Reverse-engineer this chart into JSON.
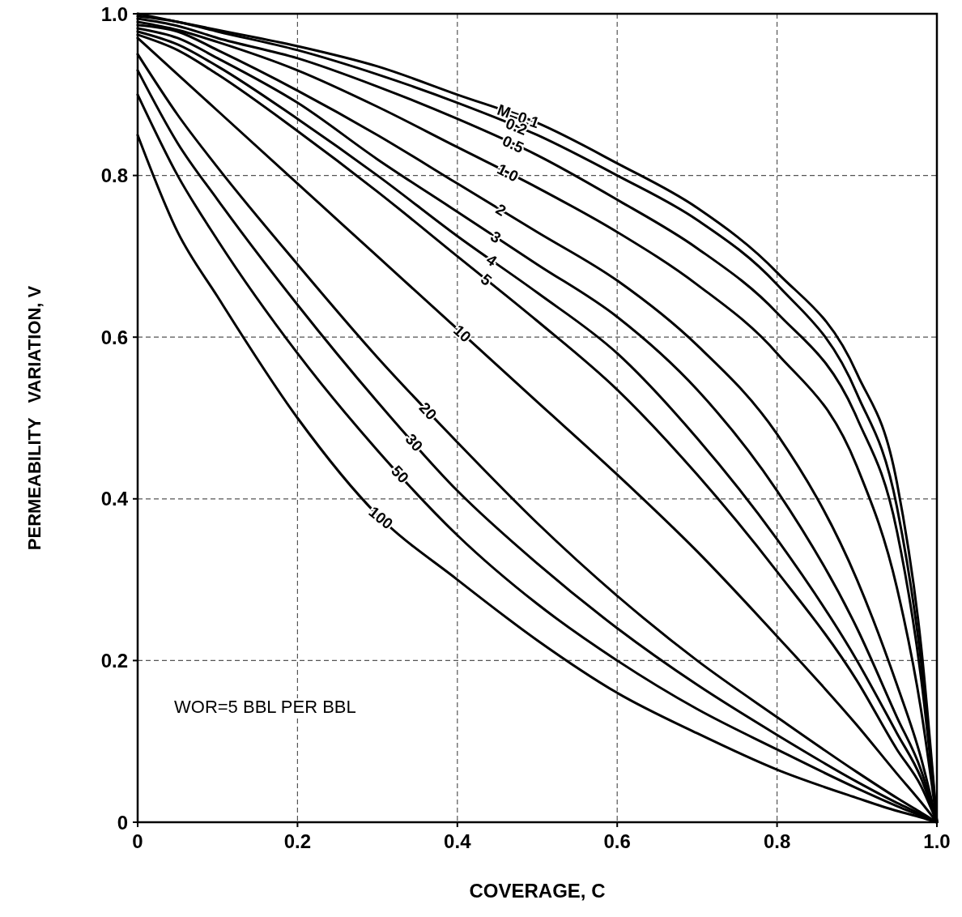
{
  "chart_data": {
    "type": "line",
    "xlabel": "COVERAGE, C",
    "ylabel": "PERMEABILITY   VARIATION, V",
    "x": [
      0,
      0.05,
      0.1,
      0.2,
      0.3,
      0.4,
      0.5,
      0.6,
      0.7,
      0.8,
      0.9,
      0.95,
      0.98,
      1
    ],
    "series": [
      {
        "name": "M=0.1",
        "color": "#000000",
        "values": [
          1,
          0.99,
          0.98,
          0.96,
          0.935,
          0.9,
          0.865,
          0.815,
          0.76,
          0.68,
          0.555,
          0.42,
          0.22,
          0
        ]
      },
      {
        "name": "0.2",
        "color": "#000000",
        "values": [
          0.997,
          0.99,
          0.978,
          0.955,
          0.925,
          0.89,
          0.85,
          0.8,
          0.745,
          0.665,
          0.53,
          0.39,
          0.2,
          0
        ]
      },
      {
        "name": "0.5",
        "color": "#000000",
        "values": [
          0.994,
          0.985,
          0.97,
          0.945,
          0.91,
          0.87,
          0.825,
          0.77,
          0.71,
          0.63,
          0.5,
          0.36,
          0.18,
          0
        ]
      },
      {
        "name": "1.0",
        "color": "#000000",
        "values": [
          0.99,
          0.98,
          0.965,
          0.93,
          0.885,
          0.835,
          0.785,
          0.73,
          0.665,
          0.58,
          0.44,
          0.29,
          0.14,
          0
        ]
      },
      {
        "name": "2",
        "color": "#000000",
        "values": [
          0.986,
          0.978,
          0.955,
          0.905,
          0.85,
          0.79,
          0.73,
          0.67,
          0.59,
          0.48,
          0.3,
          0.17,
          0.08,
          0
        ]
      },
      {
        "name": "3",
        "color": "#000000",
        "values": [
          0.982,
          0.97,
          0.945,
          0.89,
          0.82,
          0.755,
          0.69,
          0.625,
          0.535,
          0.41,
          0.24,
          0.13,
          0.065,
          0
        ]
      },
      {
        "name": "4",
        "color": "#000000",
        "values": [
          0.978,
          0.962,
          0.935,
          0.87,
          0.8,
          0.725,
          0.655,
          0.58,
          0.475,
          0.35,
          0.2,
          0.11,
          0.055,
          0
        ]
      },
      {
        "name": "5",
        "color": "#000000",
        "values": [
          0.974,
          0.955,
          0.925,
          0.855,
          0.78,
          0.7,
          0.62,
          0.535,
          0.43,
          0.31,
          0.175,
          0.09,
          0.045,
          0
        ]
      },
      {
        "name": "10",
        "color": "#000000",
        "values": [
          0.97,
          0.925,
          0.88,
          0.79,
          0.7,
          0.61,
          0.52,
          0.43,
          0.335,
          0.23,
          0.12,
          0.06,
          0.025,
          0
        ]
      },
      {
        "name": "20",
        "color": "#000000",
        "values": [
          0.95,
          0.875,
          0.81,
          0.69,
          0.575,
          0.47,
          0.37,
          0.28,
          0.2,
          0.13,
          0.062,
          0.03,
          0.012,
          0
        ]
      },
      {
        "name": "30",
        "color": "#000000",
        "values": [
          0.93,
          0.84,
          0.77,
          0.64,
          0.52,
          0.41,
          0.32,
          0.24,
          0.17,
          0.108,
          0.05,
          0.024,
          0.01,
          0
        ]
      },
      {
        "name": "50",
        "color": "#000000",
        "values": [
          0.9,
          0.8,
          0.72,
          0.58,
          0.46,
          0.355,
          0.27,
          0.2,
          0.14,
          0.09,
          0.042,
          0.02,
          0.008,
          0
        ]
      },
      {
        "name": "100",
        "color": "#000000",
        "values": [
          0.85,
          0.73,
          0.65,
          0.5,
          0.38,
          0.3,
          0.225,
          0.16,
          0.11,
          0.065,
          0.03,
          0.014,
          0.006,
          0
        ]
      }
    ],
    "xlim": [
      0,
      1
    ],
    "ylim": [
      0,
      1
    ],
    "xticks": [
      0,
      0.2,
      0.4,
      0.6,
      0.8,
      {
        "value": 1,
        "label": "1.0"
      }
    ],
    "yticks": [
      0,
      0.2,
      0.4,
      0.6,
      0.8,
      {
        "value": 1,
        "label": "1.0"
      }
    ],
    "grid": true,
    "marker": "none",
    "line_style": "solid",
    "annotations": [
      "WOR=5 BBL PER BBL"
    ]
  }
}
